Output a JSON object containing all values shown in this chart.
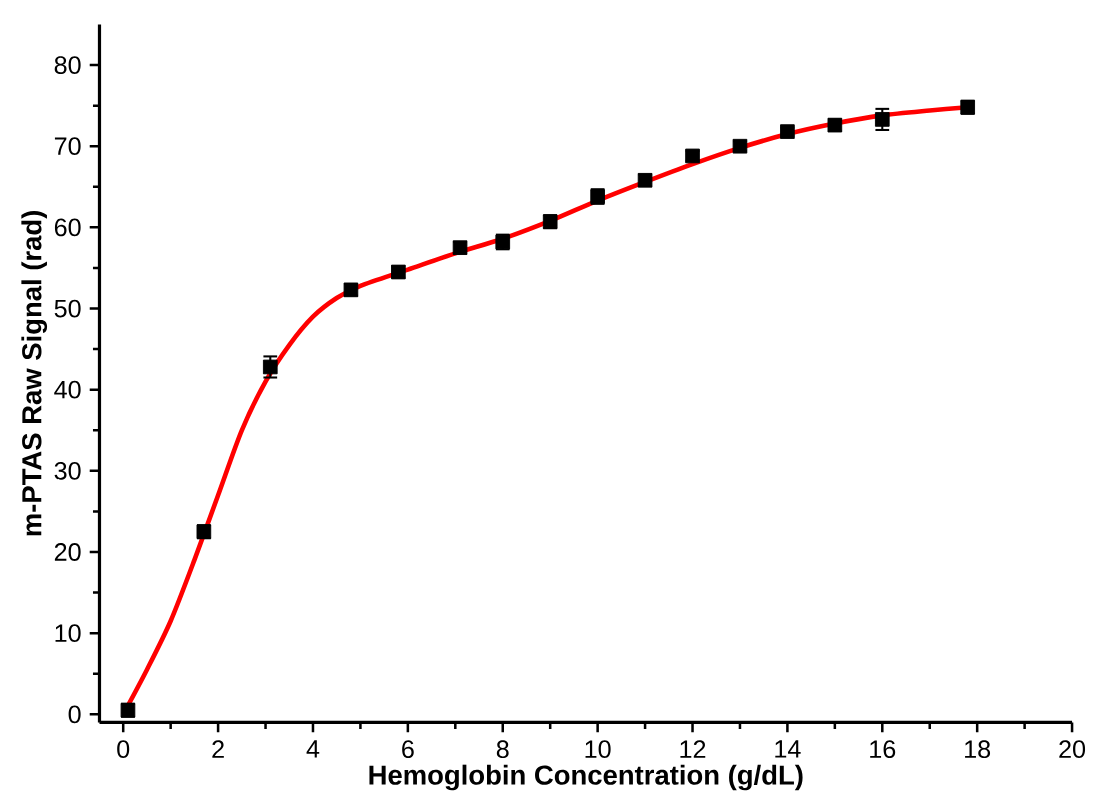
{
  "chart_data": {
    "type": "scatter",
    "xlabel": "Hemoglobin Concentration (g/dL)",
    "ylabel": "m-PTAS Raw Signal (rad)",
    "xlim": [
      -0.5,
      20
    ],
    "ylim": [
      -1,
      85
    ],
    "xticks": [
      0,
      2,
      4,
      6,
      8,
      10,
      12,
      14,
      16,
      18,
      20
    ],
    "yticks": [
      0,
      10,
      20,
      30,
      40,
      50,
      60,
      70,
      80
    ],
    "grid": false,
    "series": [
      {
        "color": "#000000",
        "marker": "square",
        "x": [
          0.1,
          1.7,
          3.1,
          4.8,
          5.8,
          7.1,
          8,
          9,
          10,
          11,
          12,
          13,
          14,
          15,
          16,
          17.8
        ],
        "values": [
          0.5,
          22.5,
          42.8,
          52.3,
          54.5,
          57.5,
          58.2,
          60.7,
          63.8,
          65.8,
          68.8,
          70,
          71.8,
          72.6,
          73.3,
          74.8
        ],
        "errors": [
          0.8,
          0.8,
          1.3,
          0.7,
          0.7,
          0.7,
          0.9,
          0.8,
          0.9,
          0.7,
          0.6,
          0.6,
          0.5,
          0.7,
          1.3,
          0.8
        ]
      },
      {
        "type": "line",
        "color": "#ff0000",
        "line_style": "solid",
        "marker": "none",
        "x": [
          0,
          0.5,
          1,
          1.5,
          2,
          2.5,
          3,
          3.5,
          4,
          4.5,
          5,
          6,
          7,
          8,
          9,
          10,
          11,
          12,
          13,
          14,
          15,
          16,
          17,
          17.8
        ],
        "values": [
          0,
          5.5,
          11.5,
          19,
          27,
          35,
          41,
          45.5,
          49,
          51.3,
          52.8,
          54.8,
          56.8,
          58.6,
          60.8,
          63.3,
          65.6,
          67.8,
          69.8,
          71.5,
          72.8,
          73.8,
          74.4,
          74.8
        ]
      }
    ]
  }
}
